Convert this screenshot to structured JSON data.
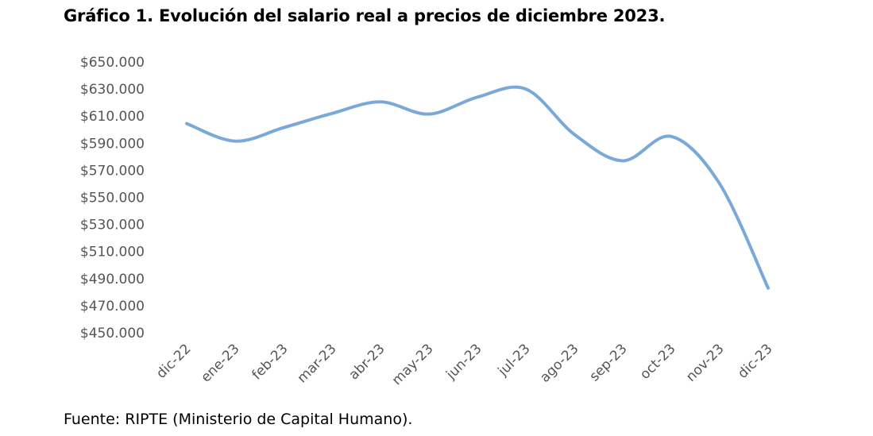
{
  "title": "Gráfico 1. Evolución del salario real a precios de diciembre 2023.",
  "source": "Fuente: RIPTE (Ministerio de Capital Humano).",
  "chart_data": {
    "type": "line",
    "categories": [
      "dic-22",
      "ene-23",
      "feb-23",
      "mar-23",
      "abr-23",
      "may-23",
      "jun-23",
      "jul-23",
      "ago-23",
      "sep-23",
      "oct-23",
      "nov-23",
      "dic-23"
    ],
    "series": [
      {
        "values": [
          604500,
          591500,
          601500,
          612000,
          620500,
          611500,
          624000,
          630000,
          596500,
          577000,
          595000,
          560000,
          483000
        ]
      }
    ],
    "ylim": [
      450000,
      650000
    ],
    "yticks": [
      450000,
      470000,
      490000,
      510000,
      530000,
      550000,
      570000,
      590000,
      610000,
      630000,
      650000
    ],
    "ytick_labels": [
      "$450.000",
      "$470.000",
      "$490.000",
      "$510.000",
      "$530.000",
      "$550.000",
      "$570.000",
      "$590.000",
      "$610.000",
      "$630.000",
      "$650.000"
    ],
    "line_color": "#7aa9d9",
    "grid": false,
    "legend": "none"
  }
}
